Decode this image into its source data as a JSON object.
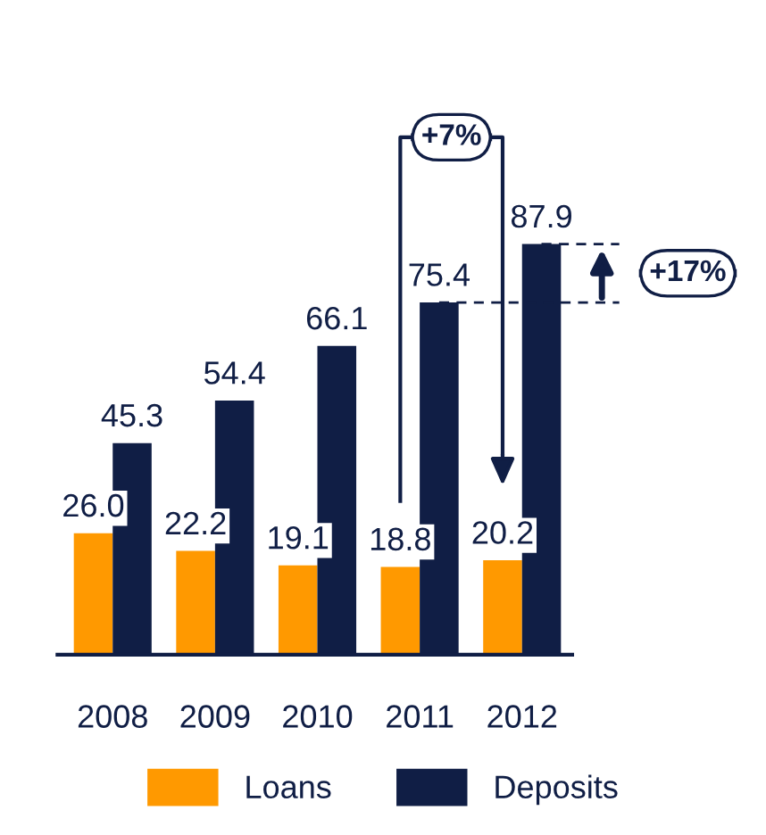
{
  "chart_data": {
    "type": "bar",
    "categories": [
      "2008",
      "2009",
      "2010",
      "2011",
      "2012"
    ],
    "series": [
      {
        "name": "Loans",
        "color": "#ff9900",
        "values": [
          26.0,
          22.2,
          19.1,
          18.8,
          20.2
        ],
        "value_labels": [
          "26.0",
          "22.2",
          "19.1",
          "18.8",
          "20.2"
        ]
      },
      {
        "name": "Deposits",
        "color": "#101e45",
        "values": [
          45.3,
          54.4,
          66.1,
          75.4,
          87.9
        ],
        "value_labels": [
          "45.3",
          "54.4",
          "66.1",
          "75.4",
          "87.9"
        ]
      }
    ],
    "data_labels": true,
    "legend": "bottom",
    "grid": false,
    "annotations": [
      "+7%",
      "+17%"
    ]
  }
}
